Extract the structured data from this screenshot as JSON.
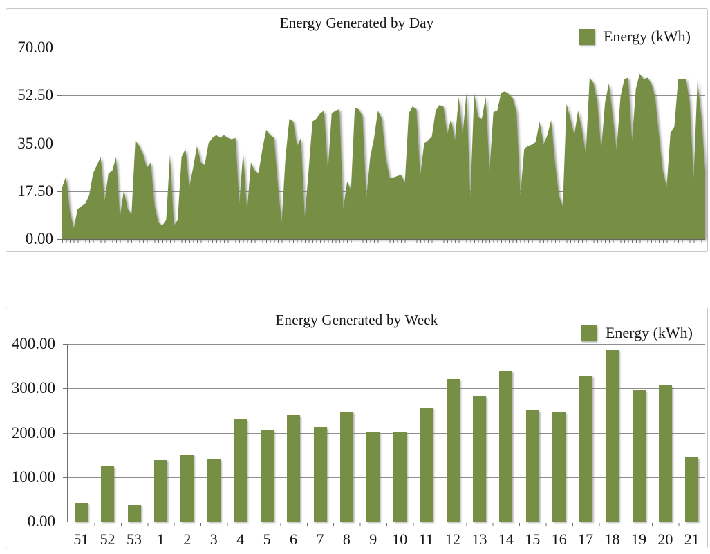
{
  "colors": {
    "series": "#768F44",
    "gridline": "#8F8F8F",
    "axis": "#6F6F6F",
    "panel_border": "#C6C6C6",
    "text": "#161616",
    "background": "#FFFFFF"
  },
  "chart_data": [
    {
      "type": "area",
      "title": "Energy Generated by Day",
      "legend_label": "Energy (kWh)",
      "legend_position": "top-right",
      "grid": true,
      "series_color": "#768F44",
      "ylim": [
        0,
        70
      ],
      "y_tick_labels": [
        "0.00",
        "17.50",
        "35.00",
        "52.50",
        "70.00"
      ],
      "x_axis_note": "one unlabeled tick per day",
      "values": [
        19,
        23,
        10,
        4,
        11,
        12,
        13,
        16,
        24,
        27,
        30,
        14,
        24,
        25,
        30,
        8,
        18,
        11,
        9,
        36,
        34,
        31,
        26,
        28,
        12,
        6,
        5,
        7,
        31,
        5,
        7,
        30,
        33,
        19,
        26,
        34,
        28,
        27,
        35,
        37,
        38,
        37,
        38,
        37,
        36.5,
        37,
        13,
        32,
        10,
        28,
        25,
        24,
        33,
        40,
        38,
        37,
        20,
        6,
        30,
        44,
        43,
        34,
        37,
        8,
        25,
        43,
        44,
        46,
        47,
        25,
        46,
        47,
        47.5,
        11,
        21,
        18,
        48,
        47.5,
        45,
        15,
        30,
        37,
        47,
        44,
        30,
        22.5,
        22.5,
        23,
        23.5,
        20.5,
        46,
        48.5,
        47.5,
        23,
        35,
        36,
        37.5,
        47,
        49,
        48.5,
        38.5,
        44,
        36,
        52,
        38,
        53.5,
        15,
        53.5,
        44.5,
        44,
        52,
        25,
        46.5,
        47,
        53.5,
        54,
        53,
        51.5,
        46.5,
        16,
        33,
        34,
        34.5,
        35.5,
        43,
        34.5,
        38,
        43.5,
        28,
        16,
        12,
        49.5,
        44,
        38,
        47,
        40,
        31,
        59,
        57,
        50,
        32.5,
        50,
        57,
        45,
        32.5,
        52,
        58.5,
        59,
        36,
        55,
        60.5,
        58.5,
        59,
        57,
        52,
        38,
        25,
        19,
        39,
        41,
        58.5,
        58.5,
        58.5,
        50,
        22,
        58,
        45,
        25
      ]
    },
    {
      "type": "bar",
      "title": "Energy Generated by Week",
      "legend_label": "Energy (kWh)",
      "legend_position": "top-right",
      "grid": true,
      "series_color": "#768F44",
      "ylim": [
        0,
        400
      ],
      "y_tick_labels": [
        "0.00",
        "100.00",
        "200.00",
        "300.00",
        "400.00"
      ],
      "categories": [
        "51",
        "52",
        "53",
        "1",
        "2",
        "3",
        "4",
        "5",
        "6",
        "7",
        "8",
        "9",
        "10",
        "11",
        "12",
        "13",
        "14",
        "15",
        "16",
        "17",
        "18",
        "19",
        "20",
        "21"
      ],
      "values": [
        42,
        125,
        38,
        139,
        151,
        140,
        230,
        206,
        240,
        214,
        248,
        200,
        201,
        257,
        321,
        284,
        339,
        250,
        246,
        328,
        388,
        296,
        306,
        144
      ]
    }
  ]
}
